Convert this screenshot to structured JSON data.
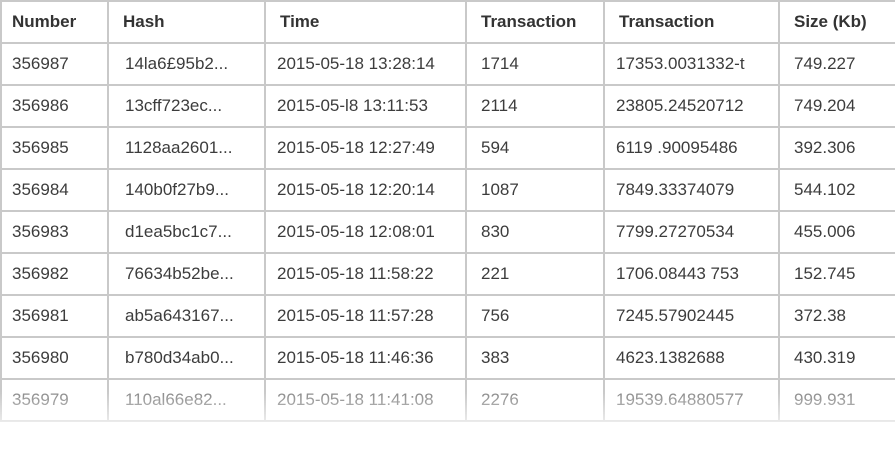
{
  "table": {
    "headers": [
      "Number",
      "Hash",
      "Time",
      "Transaction",
      "Transaction",
      "Size (Kb)"
    ],
    "rows": [
      [
        "356987",
        "14la6£95b2...",
        "2015-05-18 13:28:14",
        "1714",
        "17353.0031332-t",
        "749.227"
      ],
      [
        "356986",
        "13cff723ec...",
        "2015-05-l8 13:11:53",
        "2114",
        "23805.24520712",
        "749.204"
      ],
      [
        "356985",
        "1128aa2601...",
        "2015-05-18 12:27:49",
        "594",
        "6119 .90095486",
        "392.306"
      ],
      [
        "356984",
        "140b0f27b9...",
        "2015-05-18 12:20:14",
        "1087",
        "7849.33374079",
        "544.102"
      ],
      [
        "356983",
        "d1ea5bc1c7...",
        "2015-05-18 12:08:01",
        "830",
        "7799.27270534",
        "455.006"
      ],
      [
        "356982",
        "76634b52be...",
        "2015-05-18 11:58:22",
        "221",
        "1706.08443 753",
        "152.745"
      ],
      [
        "356981",
        "ab5a643167...",
        "2015-05-18 11:57:28",
        "756",
        "7245.57902445",
        "372.38"
      ],
      [
        "356980",
        "b780d34ab0...",
        "2015-05-18 11:46:36",
        "383",
        "4623.1382688",
        "430.319"
      ],
      [
        "356979",
        "110al66e82...",
        "2015-05-18 11:41:08",
        "2276",
        "19539.64880577",
        "999.931"
      ]
    ]
  }
}
